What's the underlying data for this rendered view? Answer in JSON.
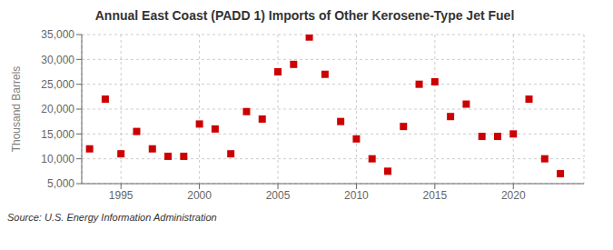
{
  "chart_data": {
    "type": "scatter",
    "title": "Annual East Coast (PADD 1) Imports of Other Kerosene-Type Jet Fuel",
    "ylabel": "Thousand Barrels",
    "annotations": [
      "Source: U.S. Energy Information Administration"
    ],
    "x": [
      1993,
      1994,
      1995,
      1996,
      1997,
      1998,
      1999,
      2000,
      2001,
      2002,
      2003,
      2004,
      2005,
      2006,
      2007,
      2008,
      2009,
      2010,
      2011,
      2012,
      2013,
      2014,
      2015,
      2016,
      2017,
      2018,
      2019,
      2020,
      2021,
      2022,
      2023
    ],
    "values": [
      12000,
      22000,
      11000,
      15500,
      12000,
      10500,
      10500,
      17000,
      16000,
      11000,
      19500,
      18000,
      27500,
      29000,
      34500,
      27000,
      17500,
      14000,
      10000,
      7500,
      16500,
      25000,
      25500,
      18500,
      21000,
      14500,
      14500,
      15000,
      22000,
      10000,
      7000
    ],
    "color": "#cc0000",
    "marker": "square",
    "xlim": [
      1992.5,
      2024.5
    ],
    "xticks": [
      1995,
      2000,
      2005,
      2010,
      2015,
      2020
    ],
    "ylim": [
      5000,
      35000
    ],
    "yticks": [
      {
        "value": 5000,
        "label": "5,000"
      },
      {
        "value": 10000,
        "label": "10,000"
      },
      {
        "value": 15000,
        "label": "15,000"
      },
      {
        "value": 20000,
        "label": "20,000"
      },
      {
        "value": 25000,
        "label": "25,000"
      },
      {
        "value": 30000,
        "label": "30,000"
      },
      {
        "value": 35000,
        "label": "35,000"
      }
    ],
    "grid": true
  }
}
